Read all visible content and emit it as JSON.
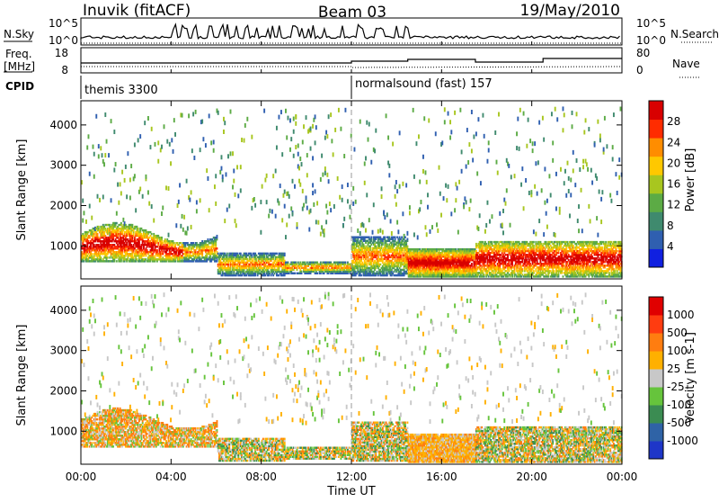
{
  "header": {
    "station": "Inuvik (fitACF)",
    "beam": "Beam 03",
    "date": "19/May/2010"
  },
  "nsky_panel": {
    "label": "N.Sky",
    "right_label": "N.Search",
    "left_ticks": [
      "10^5",
      "10^0"
    ],
    "right_ticks": [
      "10^5",
      "10^0"
    ]
  },
  "freq_panel": {
    "label_line1": "Freq.",
    "label_line2": "[MHz]",
    "right_label": "Nave",
    "left_ticks": [
      "18",
      "8"
    ],
    "right_ticks": [
      "80",
      "0"
    ]
  },
  "cpid": {
    "label": "CPID",
    "modes": [
      {
        "text": "themis 3300"
      },
      {
        "text": "normalsound (fast) 157"
      }
    ]
  },
  "chart_data": [
    {
      "type": "heatmap",
      "name": "power",
      "ylabel": "Slant Range [km]",
      "y_ticks": [
        "1000",
        "2000",
        "3000",
        "4000"
      ],
      "yrange_km": [
        180,
        4600
      ],
      "colorbar_label": "Power [dB]",
      "colorbar_ticks": [
        "4",
        "8",
        "12",
        "16",
        "20",
        "24",
        "28"
      ],
      "colorbar_range": [
        0,
        32
      ],
      "colors": [
        "#1020e0",
        "#2f5fb0",
        "#3f8a6e",
        "#5cab45",
        "#a8c61f",
        "#ffc800",
        "#ff8d00",
        "#ff2c00",
        "#d80000"
      ]
    },
    {
      "type": "heatmap",
      "name": "velocity",
      "ylabel": "Slant Range [km]",
      "y_ticks": [
        "1000",
        "2000",
        "3000",
        "4000"
      ],
      "yrange_km": [
        180,
        4600
      ],
      "colorbar_label": "Velocity [m s-1]",
      "colorbar_ticks": [
        "1000",
        "500",
        "100",
        "25",
        "-25",
        "-100",
        "-500",
        "-1000"
      ],
      "colors": [
        "#1e36c8",
        "#2f63a6",
        "#3b8c52",
        "#66c43c",
        "#c8c8c8",
        "#ffb000",
        "#ff7d10",
        "#ff3c10",
        "#e00000"
      ]
    }
  ],
  "time_axis": {
    "label": "Time UT",
    "ticks": [
      "00:00",
      "04:00",
      "08:00",
      "12:00",
      "16:00",
      "20:00",
      "00:00"
    ]
  }
}
